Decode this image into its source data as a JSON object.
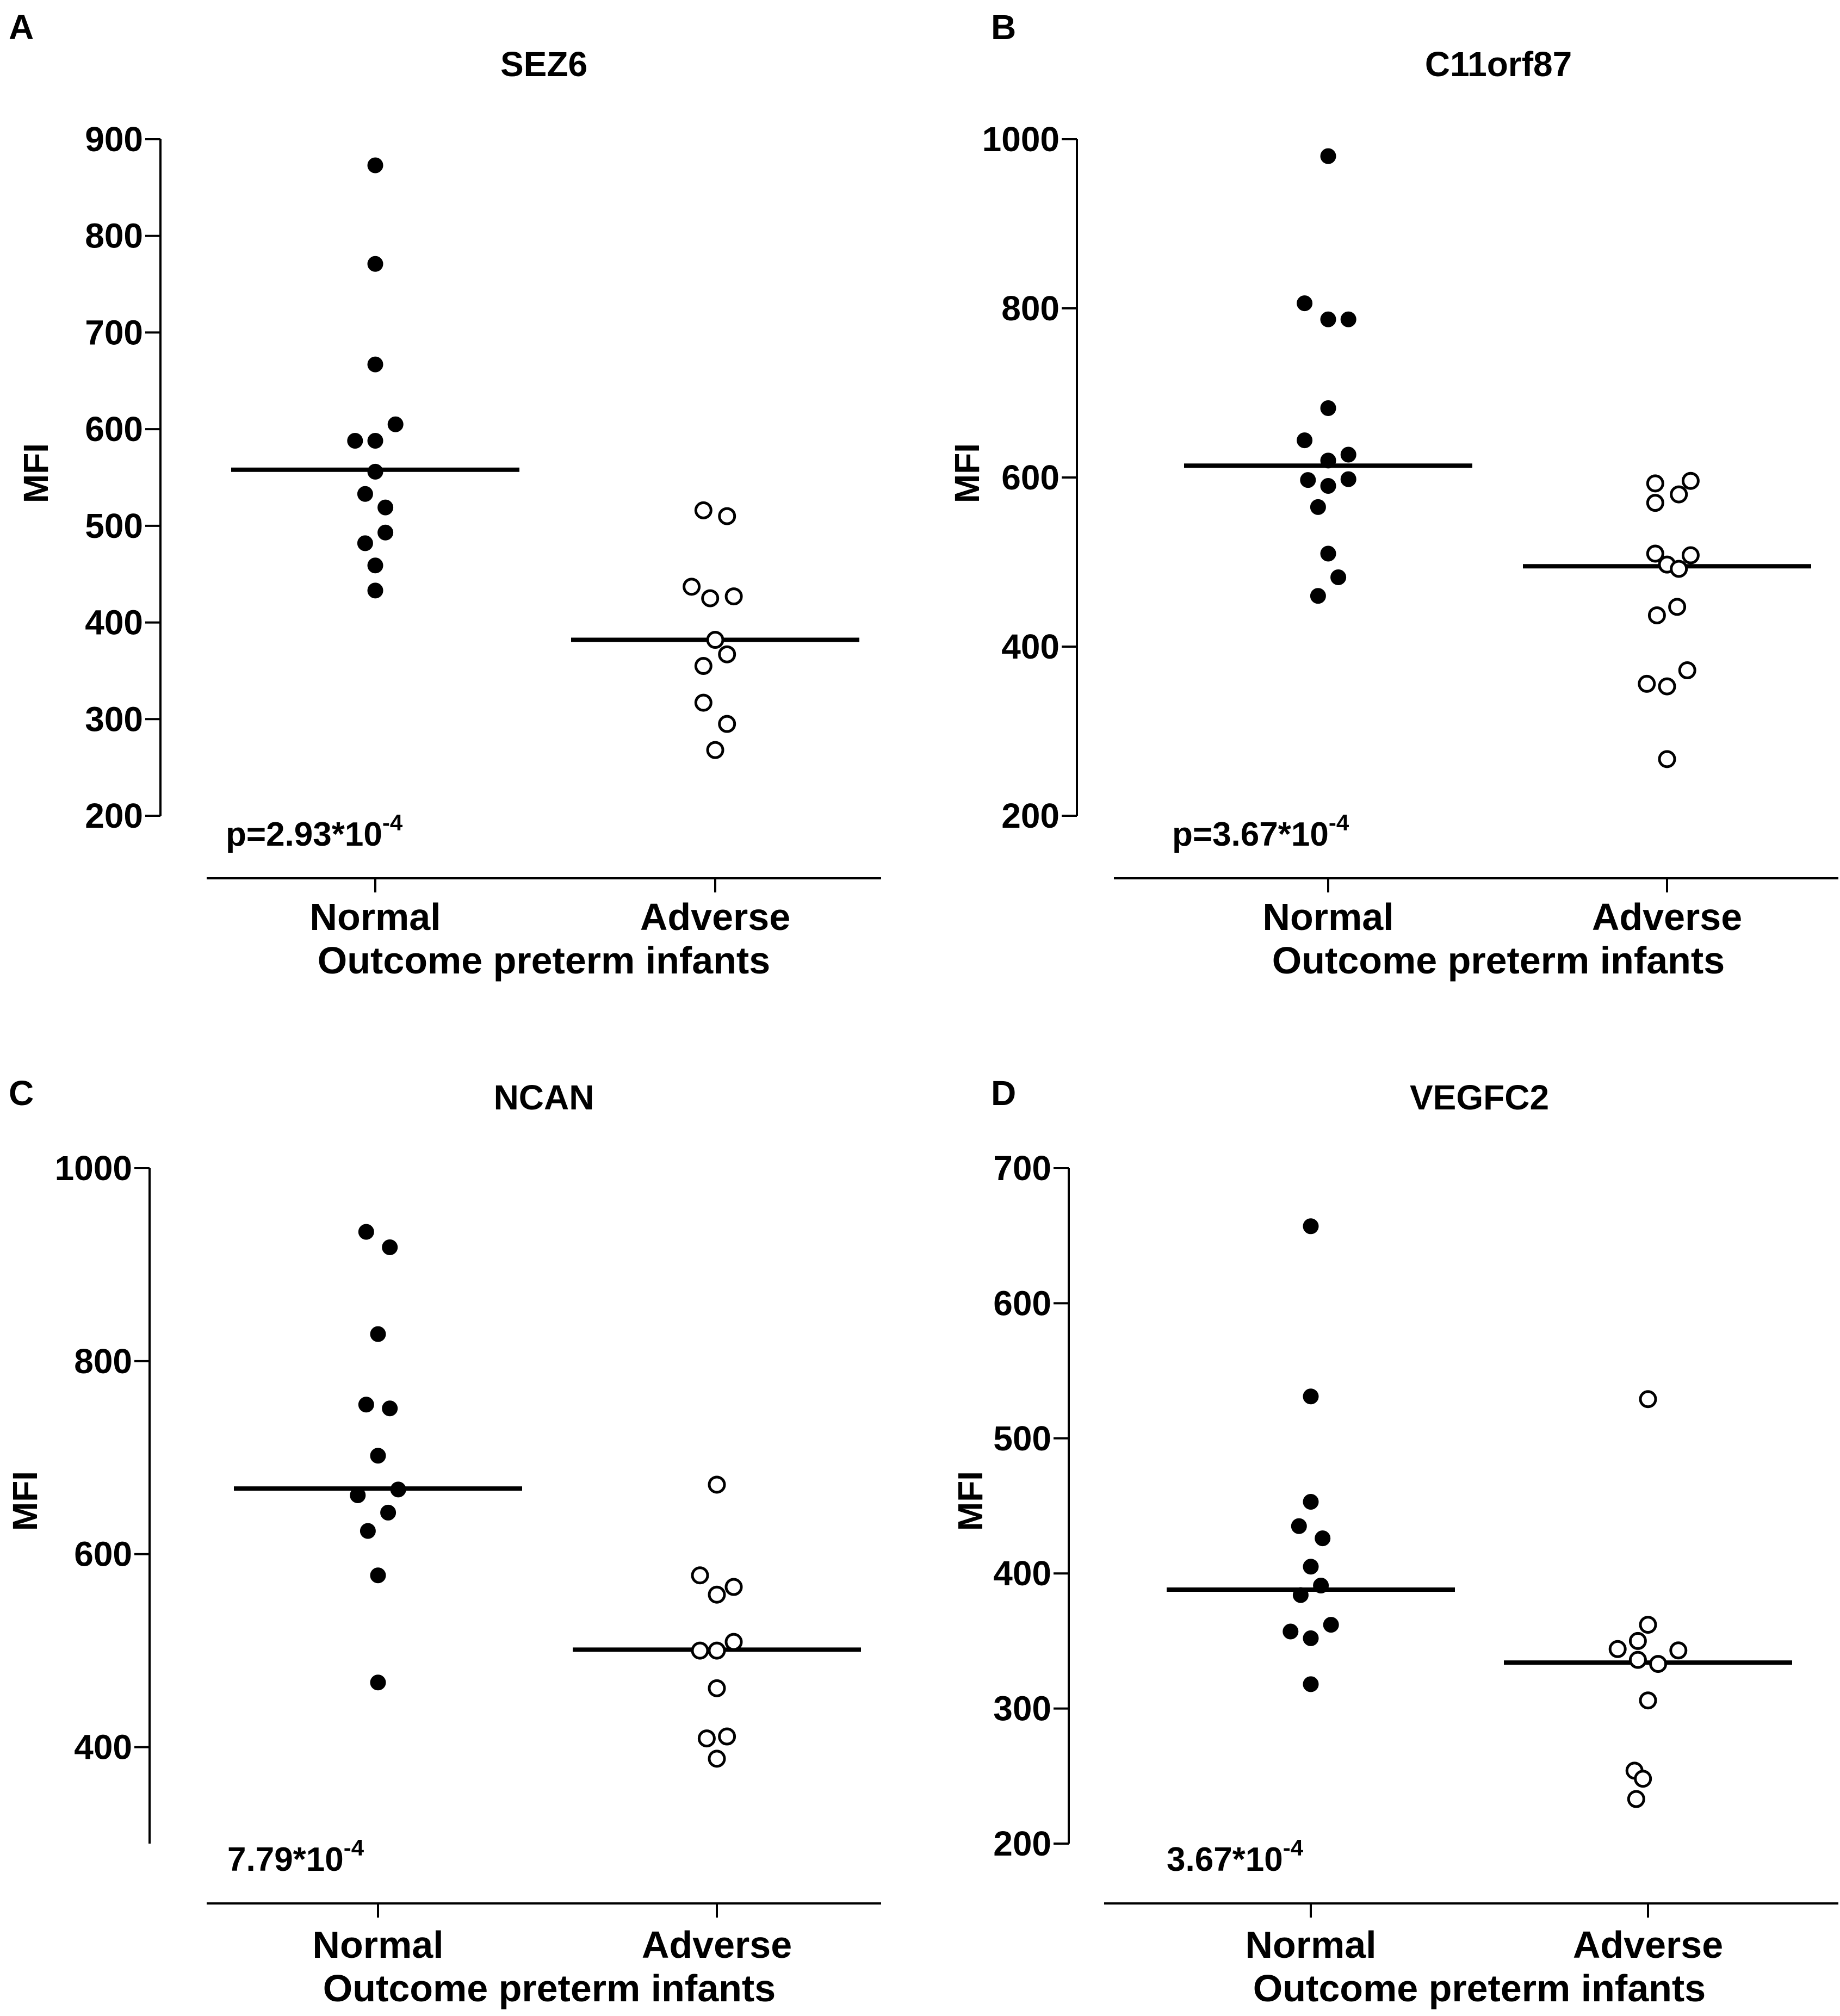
{
  "xlabel": "Outcome preterm infants",
  "chart_data": [
    {
      "type": "scatter",
      "panel": "A",
      "title": "SEZ6",
      "ylabel": "MFI",
      "xlabel": "Outcome preterm infants",
      "categories": [
        "Normal",
        "Adverse"
      ],
      "ylim": [
        200,
        900
      ],
      "yticks": [
        200,
        300,
        400,
        500,
        600,
        700,
        800,
        900
      ],
      "p_value": {
        "prefix": "p=2.93*10",
        "exponent": "-4"
      },
      "series": [
        {
          "name": "Normal",
          "filled": true,
          "median": 558,
          "points": [
            [
              0,
              873
            ],
            [
              0,
              771
            ],
            [
              0,
              667
            ],
            [
              -0.06,
              588
            ],
            [
              0,
              588
            ],
            [
              0.06,
              605
            ],
            [
              0,
              556
            ],
            [
              -0.03,
              533
            ],
            [
              0.03,
              519
            ],
            [
              -0.03,
              482
            ],
            [
              0.03,
              493
            ],
            [
              0,
              459
            ],
            [
              0,
              433
            ]
          ]
        },
        {
          "name": "Adverse",
          "filled": false,
          "median": 382,
          "points": [
            [
              -0.035,
              516
            ],
            [
              0.035,
              510
            ],
            [
              -0.07,
              437
            ],
            [
              -0.015,
              425
            ],
            [
              0.055,
              427
            ],
            [
              0,
              382
            ],
            [
              -0.035,
              355
            ],
            [
              0.035,
              367
            ],
            [
              -0.035,
              317
            ],
            [
              0.035,
              295
            ],
            [
              0,
              268
            ]
          ]
        }
      ]
    },
    {
      "type": "scatter",
      "panel": "B",
      "title": "C11orf87",
      "ylabel": "MFI",
      "xlabel": "Outcome preterm infants",
      "categories": [
        "Normal",
        "Adverse"
      ],
      "ylim": [
        200,
        1000
      ],
      "yticks": [
        200,
        400,
        600,
        800,
        1000
      ],
      "p_value": {
        "prefix": "p=3.67*10",
        "exponent": "-4"
      },
      "series": [
        {
          "name": "Normal",
          "filled": true,
          "median": 614,
          "points": [
            [
              0,
              980
            ],
            [
              -0.07,
              806
            ],
            [
              0,
              787
            ],
            [
              0.06,
              787
            ],
            [
              0,
              682
            ],
            [
              -0.07,
              644
            ],
            [
              0,
              620
            ],
            [
              0.06,
              627
            ],
            [
              -0.06,
              597
            ],
            [
              0,
              590
            ],
            [
              0.06,
              598
            ],
            [
              -0.03,
              565
            ],
            [
              0,
              510
            ],
            [
              0.03,
              482
            ],
            [
              -0.03,
              460
            ]
          ]
        },
        {
          "name": "Adverse",
          "filled": false,
          "median": 495,
          "points": [
            [
              -0.035,
              593
            ],
            [
              -0.035,
              570
            ],
            [
              0.035,
              580
            ],
            [
              0.07,
              596
            ],
            [
              -0.035,
              510
            ],
            [
              0,
              497
            ],
            [
              0.035,
              492
            ],
            [
              0.07,
              508
            ],
            [
              -0.03,
              437
            ],
            [
              0.03,
              447
            ],
            [
              -0.06,
              356
            ],
            [
              0,
              353
            ],
            [
              0.06,
              372
            ],
            [
              0,
              267
            ]
          ]
        }
      ]
    },
    {
      "type": "scatter",
      "panel": "C",
      "title": "NCAN",
      "ylabel": "MFI",
      "xlabel": "Outcome preterm infants",
      "categories": [
        "Normal",
        "Adverse"
      ],
      "ylim": [
        300,
        1000
      ],
      "yticks": [
        400,
        600,
        800,
        1000
      ],
      "p_value": {
        "prefix": "7.79*10",
        "exponent": "-4"
      },
      "series": [
        {
          "name": "Normal",
          "filled": true,
          "median": 668,
          "points": [
            [
              -0.035,
              934
            ],
            [
              0.035,
              918
            ],
            [
              0,
              828
            ],
            [
              -0.035,
              755
            ],
            [
              0.035,
              751
            ],
            [
              0,
              702
            ],
            [
              -0.06,
              661
            ],
            [
              0.06,
              667
            ],
            [
              -0.03,
              624
            ],
            [
              0.03,
              643
            ],
            [
              0,
              578
            ],
            [
              0,
              467
            ]
          ]
        },
        {
          "name": "Adverse",
          "filled": false,
          "median": 501,
          "points": [
            [
              0,
              672
            ],
            [
              -0.05,
              578
            ],
            [
              0,
              558
            ],
            [
              0.05,
              566
            ],
            [
              -0.05,
              500
            ],
            [
              0,
              500
            ],
            [
              0.05,
              509
            ],
            [
              0,
              461
            ],
            [
              -0.03,
              409
            ],
            [
              0.03,
              411
            ],
            [
              0,
              388
            ]
          ]
        }
      ]
    },
    {
      "type": "scatter",
      "panel": "D",
      "title": "VEGFC2",
      "ylabel": "MFI",
      "xlabel": "Outcome preterm infants",
      "categories": [
        "Normal",
        "Adverse"
      ],
      "ylim": [
        200,
        700
      ],
      "yticks": [
        200,
        300,
        400,
        500,
        600,
        700
      ],
      "p_value": {
        "prefix": "3.67*10",
        "exponent": "-4"
      },
      "series": [
        {
          "name": "Normal",
          "filled": true,
          "median": 388,
          "points": [
            [
              0,
              657
            ],
            [
              0,
              531
            ],
            [
              0,
              453
            ],
            [
              -0.035,
              435
            ],
            [
              0.035,
              426
            ],
            [
              0,
              405
            ],
            [
              -0.03,
              384
            ],
            [
              0.03,
              391
            ],
            [
              -0.06,
              357
            ],
            [
              0,
              352
            ],
            [
              0.06,
              362
            ],
            [
              0,
              318
            ]
          ]
        },
        {
          "name": "Adverse",
          "filled": false,
          "median": 334,
          "points": [
            [
              0,
              529
            ],
            [
              0,
              362
            ],
            [
              -0.09,
              344
            ],
            [
              -0.03,
              350
            ],
            [
              0.09,
              343
            ],
            [
              -0.03,
              336
            ],
            [
              0.03,
              333
            ],
            [
              0,
              306
            ],
            [
              -0.04,
              254
            ],
            [
              -0.015,
              248
            ],
            [
              -0.035,
              233
            ]
          ]
        }
      ]
    }
  ]
}
